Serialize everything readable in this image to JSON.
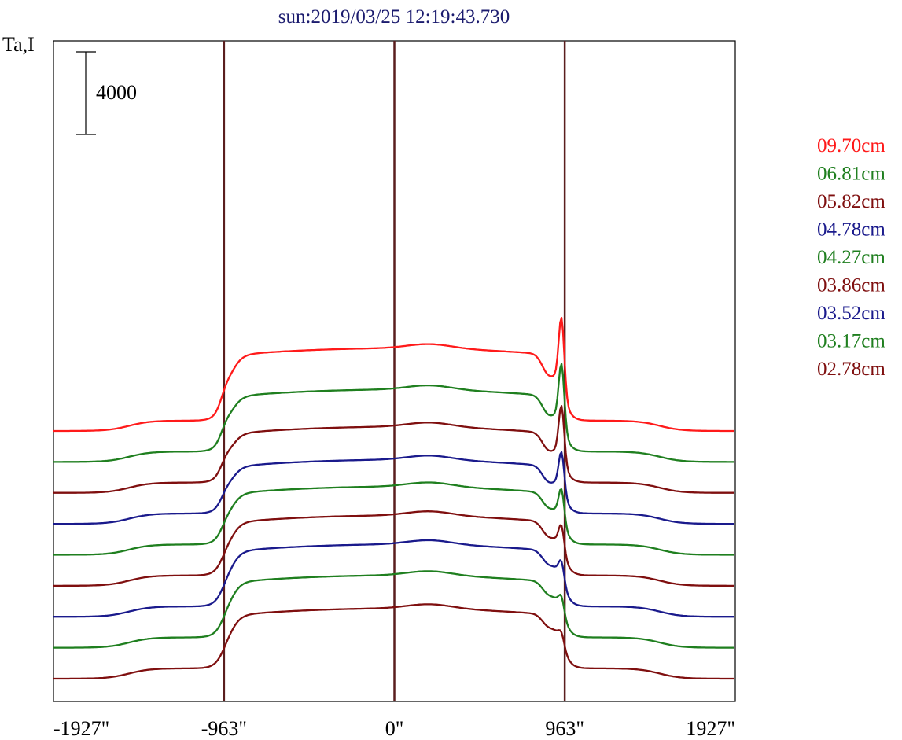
{
  "chart_data": {
    "type": "line",
    "title": "sun:2019/03/25 12:19:43.730",
    "ylabel": "Ta,I",
    "scale_bar_label": "4000",
    "xlim": [
      -1927,
      1927
    ],
    "x_ticks": [
      {
        "value": -1927,
        "label": "-1927\""
      },
      {
        "value": -963,
        "label": "-963\""
      },
      {
        "value": 0,
        "label": "0\""
      },
      {
        "value": 963,
        "label": "963\""
      },
      {
        "value": 1927,
        "label": "1927\""
      }
    ],
    "vertical_markers": [
      -963,
      0,
      963
    ],
    "marker_color": "#5a1e1e",
    "scale_bar": {
      "value": 4000
    },
    "series": [
      {
        "name": "09.70cm",
        "color": "#ff1a1a",
        "offset": 12000,
        "disk": 4000,
        "peak": 3500,
        "dip": 1400
      },
      {
        "name": "06.81cm",
        "color": "#1f7f1f",
        "offset": 10500,
        "disk": 3500,
        "peak": 3000,
        "dip": 1300
      },
      {
        "name": "05.82cm",
        "color": "#7f0f0f",
        "offset": 9000,
        "disk": 3200,
        "peak": 2600,
        "dip": 1200
      },
      {
        "name": "04.78cm",
        "color": "#1a1a8c",
        "offset": 7500,
        "disk": 3100,
        "peak": 1900,
        "dip": 1100
      },
      {
        "name": "04.27cm",
        "color": "#1f7f1f",
        "offset": 6000,
        "disk": 3300,
        "peak": 1500,
        "dip": 1000
      },
      {
        "name": "03.86cm",
        "color": "#7f0f0f",
        "offset": 4500,
        "disk": 3400,
        "peak": 1200,
        "dip": 1000
      },
      {
        "name": "03.52cm",
        "color": "#1a1a8c",
        "offset": 3000,
        "disk": 3500,
        "peak": 900,
        "dip": 900
      },
      {
        "name": "03.17cm",
        "color": "#1f7f1f",
        "offset": 1500,
        "disk": 3500,
        "peak": 700,
        "dip": 850
      },
      {
        "name": "02.78cm",
        "color": "#7f0f0f",
        "offset": 0,
        "disk": 3400,
        "peak": 500,
        "dip": 800
      }
    ]
  }
}
